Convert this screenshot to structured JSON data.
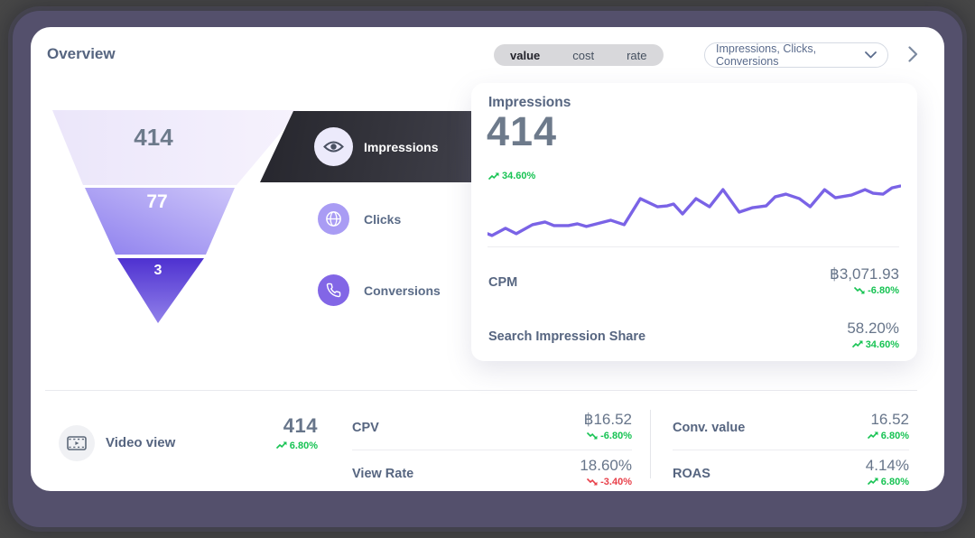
{
  "window": {
    "title": "Overview"
  },
  "toolbar": {
    "metric_type_segments": [
      {
        "label": "value",
        "active": true
      },
      {
        "label": "cost",
        "active": false
      },
      {
        "label": "rate",
        "active": false
      }
    ],
    "metrics_dropdown": {
      "selected": "Impressions, Clicks, Conversions"
    }
  },
  "funnel": {
    "stages": [
      {
        "label": "Impressions",
        "value": "414"
      },
      {
        "label": "Clicks",
        "value": "77"
      },
      {
        "label": "Conversions",
        "value": "3"
      }
    ]
  },
  "tabs": [
    {
      "label": "Impressions",
      "icon": "eye-icon",
      "active": true
    },
    {
      "label": "Clicks",
      "icon": "globe-icon",
      "active": false
    },
    {
      "label": "Conversions",
      "icon": "phone-icon",
      "active": false
    }
  ],
  "detail_card": {
    "title": "Impressions",
    "value": "414",
    "change": {
      "text": "34.60%",
      "direction": "up",
      "color": "green"
    },
    "metrics": [
      {
        "label": "CPM",
        "value": "฿3,071.93",
        "change": {
          "text": "-6.80%",
          "direction": "down",
          "color": "green"
        }
      },
      {
        "label": "Search Impression Share",
        "value": "58.20%",
        "change": {
          "text": "34.60%",
          "direction": "up",
          "color": "green"
        }
      }
    ]
  },
  "chart_data": {
    "type": "line",
    "title": "Impressions trend",
    "series": [
      {
        "name": "Impressions"
      }
    ],
    "legend": false,
    "grid": false,
    "axes_visible": false,
    "stroke_color": "#7a63e6",
    "points": [
      [
        0,
        61
      ],
      [
        5,
        63
      ],
      [
        20,
        55
      ],
      [
        32,
        61
      ],
      [
        50,
        51
      ],
      [
        64,
        48
      ],
      [
        74,
        52
      ],
      [
        90,
        52
      ],
      [
        100,
        50
      ],
      [
        110,
        53
      ],
      [
        137,
        46
      ],
      [
        152,
        51
      ],
      [
        170,
        22
      ],
      [
        189,
        31
      ],
      [
        200,
        30
      ],
      [
        207,
        28
      ],
      [
        217,
        39
      ],
      [
        232,
        22
      ],
      [
        247,
        31
      ],
      [
        262,
        12
      ],
      [
        280,
        37
      ],
      [
        295,
        32
      ],
      [
        310,
        30
      ],
      [
        320,
        20
      ],
      [
        332,
        17
      ],
      [
        347,
        22
      ],
      [
        359,
        31
      ],
      [
        375,
        12
      ],
      [
        387,
        21
      ],
      [
        405,
        18
      ],
      [
        420,
        12
      ],
      [
        429,
        16
      ],
      [
        440,
        17
      ],
      [
        450,
        10
      ],
      [
        459,
        8
      ]
    ]
  },
  "bottom_row": {
    "video": {
      "label": "Video view",
      "value": "414",
      "change": {
        "text": "6.80%",
        "direction": "up",
        "color": "green"
      }
    },
    "columns": [
      [
        {
          "label": "CPV",
          "value": "฿16.52",
          "change": {
            "text": "-6.80%",
            "direction": "down",
            "color": "green"
          }
        },
        {
          "label": "View Rate",
          "value": "18.60%",
          "change": {
            "text": "-3.40%",
            "direction": "down",
            "color": "red"
          }
        }
      ],
      [
        {
          "label": "Conv. value",
          "value": "16.52",
          "change": {
            "text": "6.80%",
            "direction": "up",
            "color": "green"
          }
        },
        {
          "label": "ROAS",
          "value": "4.14%",
          "change": {
            "text": "6.80%",
            "direction": "up",
            "color": "green"
          }
        }
      ]
    ]
  },
  "colors": {
    "accent_purple": "#7a63e6",
    "positive_green": "#17c353",
    "negative_red": "#e8404a",
    "funnel_stage_colors": [
      "#ece7fa",
      "#8d7fee",
      "#4e31d0"
    ],
    "active_tab_bg": "#34343c",
    "frame_border": "#54506c"
  }
}
